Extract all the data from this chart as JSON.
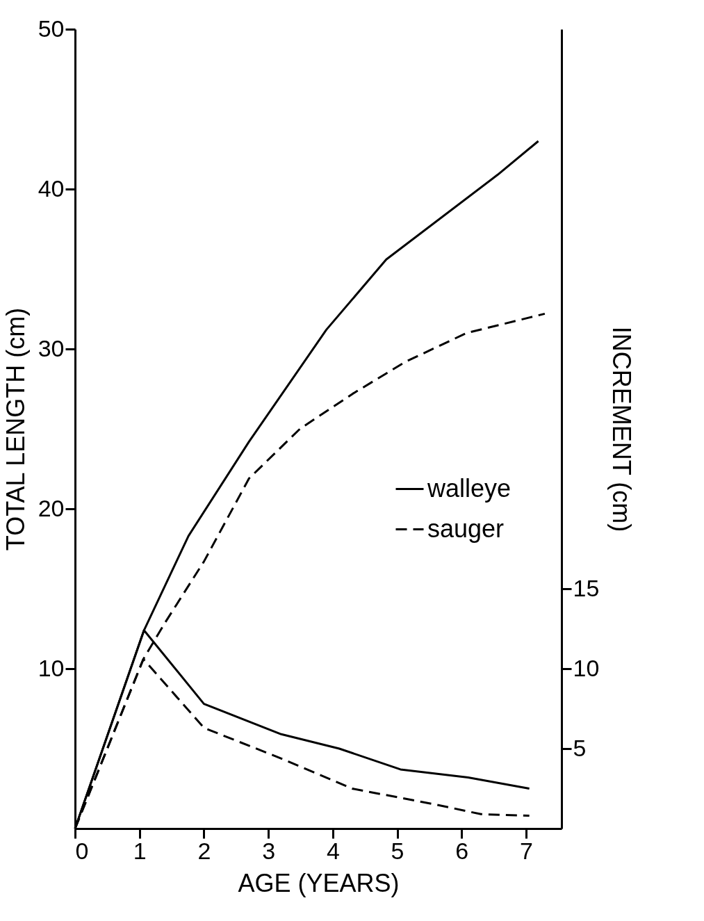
{
  "chart_data": {
    "type": "line",
    "xlabel": "AGE (YEARS)",
    "ylabel": "TOTAL LENGTH (cm)",
    "y2label": "INCREMENT  (cm)",
    "xlim": [
      0,
      7.55
    ],
    "xticks": [
      0,
      1,
      2,
      3,
      4,
      5,
      6,
      7
    ],
    "ylim": [
      0,
      50
    ],
    "yticks": [
      10,
      20,
      30,
      40,
      50
    ],
    "y2lim": [
      0,
      50
    ],
    "y2ticks": [
      5,
      10,
      15
    ],
    "grid": false,
    "legend": "right",
    "marker": "none",
    "series": [
      {
        "name": "walleye",
        "color": "#000000",
        "line_style": "solid",
        "x": [
          0,
          1.07,
          1.76,
          2.7,
          3.9,
          4.83,
          6.56,
          7.19
        ],
        "values": [
          0,
          12.4,
          18.3,
          24.2,
          31.2,
          35.6,
          40.9,
          43.0
        ]
      },
      {
        "name": "sauger",
        "color": "#000000",
        "line_style": "dashed",
        "x": [
          0,
          1.06,
          1.4,
          2.0,
          2.7,
          3.49,
          4.31,
          5.13,
          6.08,
          7.29
        ],
        "values": [
          0,
          10.6,
          12.9,
          16.7,
          21.9,
          25.0,
          27.2,
          29.2,
          31.0,
          32.2
        ]
      },
      {
        "color": "#000000",
        "line_style": "solid",
        "axis": "y2",
        "x": [
          0,
          1.07,
          2.0,
          3.2,
          4.1,
          5.05,
          6.1,
          7.05
        ],
        "values": [
          0,
          12.4,
          7.8,
          5.9,
          5.0,
          3.7,
          3.2,
          2.5
        ]
      },
      {
        "color": "#000000",
        "line_style": "dashed",
        "axis": "y2",
        "x": [
          0,
          1.06,
          2.0,
          3.25,
          4.3,
          5.6,
          6.3,
          7.05
        ],
        "values": [
          0,
          10.6,
          6.3,
          4.3,
          2.5,
          1.5,
          0.9,
          0.8
        ]
      }
    ]
  }
}
